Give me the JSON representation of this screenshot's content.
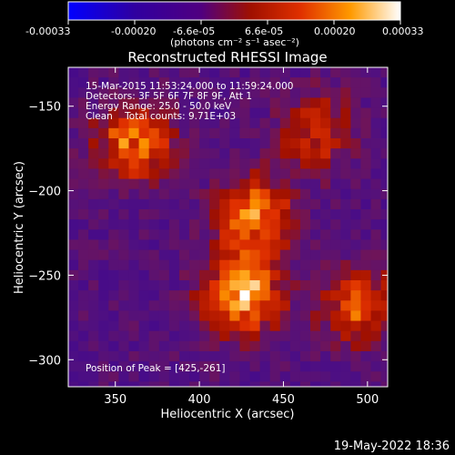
{
  "colorbar": {
    "tick_labels": [
      "-0.00033",
      "-0.00020",
      "-6.6e-05",
      "6.6e-05",
      "0.00020",
      "0.00033"
    ],
    "units": "(photons cm⁻² s⁻¹ asec⁻²)",
    "range": [
      -0.00033,
      0.00033
    ]
  },
  "chart_data": {
    "type": "heatmap",
    "title": "Reconstructed RHESSI Image",
    "xlabel": "Heliocentric X (arcsec)",
    "ylabel": "Heliocentric Y (arcsec)",
    "xlim": [
      322,
      512
    ],
    "ylim": [
      -316,
      -127
    ],
    "xticks": [
      350,
      400,
      450,
      500
    ],
    "yticks": [
      -150,
      -200,
      -250,
      -300
    ],
    "annotations": [
      "15-Mar-2015 11:53:24.000 to 11:59:24.000",
      "Detectors: 3F 5F 6F 7F 8F 9F, Att 1",
      "Energy Range: 25.0 - 50.0 keV",
      "Clean    Total counts: 9.71E+03"
    ],
    "peak_label": "Position of Peak = [425,-261]",
    "peak": [
      425,
      -261
    ],
    "sources": [
      {
        "x": 425,
        "y": -261,
        "intensity": 0.00033
      },
      {
        "x": 433,
        "y": -215,
        "intensity": 0.00026
      },
      {
        "x": 362,
        "y": -172,
        "intensity": 0.00025
      },
      {
        "x": 495,
        "y": -268,
        "intensity": 0.00022
      },
      {
        "x": 470,
        "y": -165,
        "intensity": 0.00016
      }
    ]
  },
  "footer_date": "19-May-2022 18:36"
}
